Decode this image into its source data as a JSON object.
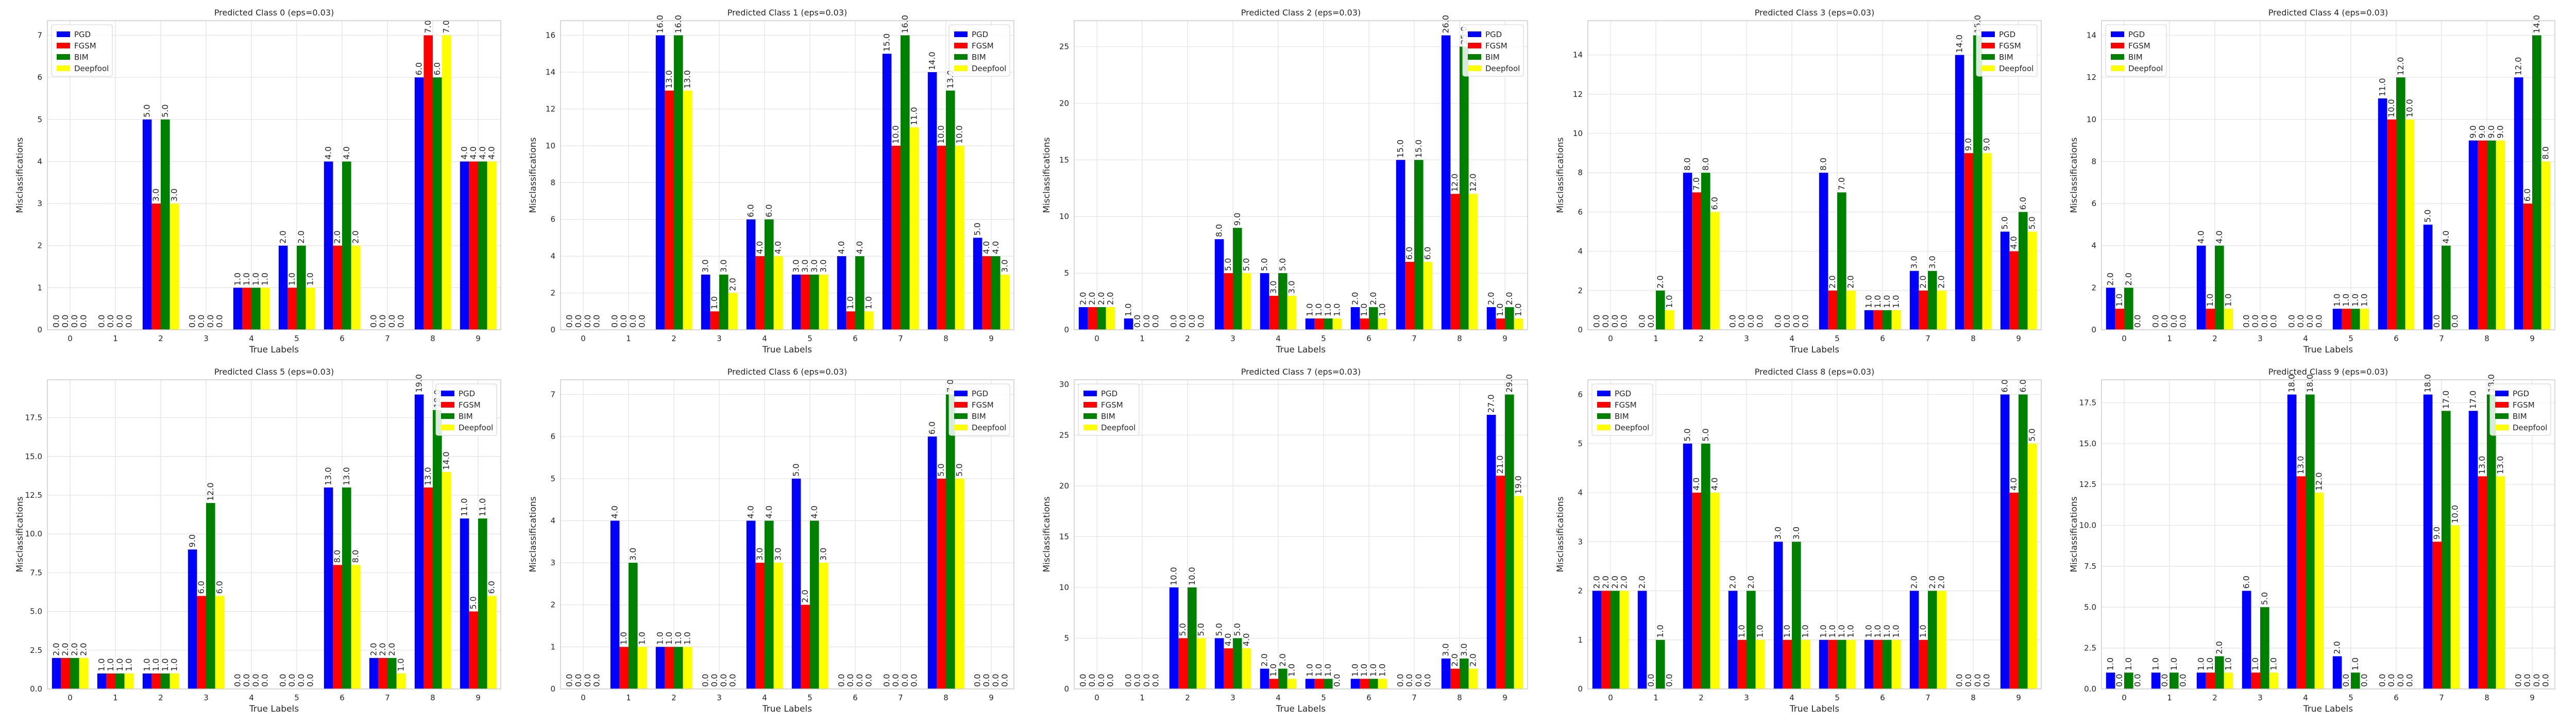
{
  "figure": {
    "series_colors": {
      "PGD": "#0000ff",
      "FGSM": "#ff0000",
      "BIM": "#008000",
      "Deepfool": "#ffff00"
    },
    "grid": true,
    "background": "#ffffff"
  },
  "chart_data": [
    {
      "type": "bar",
      "title": "Predicted Class 0 (eps=0.03)",
      "xlabel": "True Labels",
      "ylabel": "Misclassifications",
      "categories": [
        "0",
        "1",
        "2",
        "3",
        "4",
        "5",
        "6",
        "7",
        "8",
        "9"
      ],
      "ylim": [
        0,
        7.35
      ],
      "yticks": [
        0,
        1,
        2,
        3,
        4,
        5,
        6,
        7
      ],
      "ytick_labels": [
        "0",
        "1",
        "2",
        "3",
        "4",
        "5",
        "6",
        "7"
      ],
      "legend": "top-left",
      "series": [
        {
          "name": "PGD",
          "values": [
            0,
            0,
            5,
            0,
            1,
            2,
            4,
            0,
            6,
            4
          ]
        },
        {
          "name": "FGSM",
          "values": [
            0,
            0,
            3,
            0,
            1,
            1,
            2,
            0,
            7,
            4
          ]
        },
        {
          "name": "BIM",
          "values": [
            0,
            0,
            5,
            0,
            1,
            2,
            4,
            0,
            6,
            4
          ]
        },
        {
          "name": "Deepfool",
          "values": [
            0,
            0,
            3,
            0,
            1,
            1,
            2,
            0,
            7,
            4
          ]
        }
      ]
    },
    {
      "type": "bar",
      "title": "Predicted Class 1 (eps=0.03)",
      "xlabel": "True Labels",
      "ylabel": "Misclassifications",
      "categories": [
        "0",
        "1",
        "2",
        "3",
        "4",
        "5",
        "6",
        "7",
        "8",
        "9"
      ],
      "ylim": [
        0,
        16.8
      ],
      "yticks": [
        0,
        2,
        4,
        6,
        8,
        10,
        12,
        14,
        16
      ],
      "ytick_labels": [
        "0",
        "2",
        "4",
        "6",
        "8",
        "10",
        "12",
        "14",
        "16"
      ],
      "legend": "top-right",
      "series": [
        {
          "name": "PGD",
          "values": [
            0,
            0,
            16,
            3,
            6,
            3,
            4,
            15,
            14,
            5
          ]
        },
        {
          "name": "FGSM",
          "values": [
            0,
            0,
            13,
            1,
            4,
            3,
            1,
            10,
            10,
            4
          ]
        },
        {
          "name": "BIM",
          "values": [
            0,
            0,
            16,
            3,
            6,
            3,
            4,
            16,
            13,
            4
          ]
        },
        {
          "name": "Deepfool",
          "values": [
            0,
            0,
            13,
            2,
            4,
            3,
            1,
            11,
            10,
            3
          ]
        }
      ]
    },
    {
      "type": "bar",
      "title": "Predicted Class 2 (eps=0.03)",
      "xlabel": "True Labels",
      "ylabel": "Misclassifications",
      "categories": [
        "0",
        "1",
        "2",
        "3",
        "4",
        "5",
        "6",
        "7",
        "8",
        "9"
      ],
      "ylim": [
        0,
        27.3
      ],
      "yticks": [
        0,
        5,
        10,
        15,
        20,
        25
      ],
      "ytick_labels": [
        "0",
        "5",
        "10",
        "15",
        "20",
        "25"
      ],
      "legend": "top-right",
      "series": [
        {
          "name": "PGD",
          "values": [
            2,
            1,
            0,
            8,
            5,
            1,
            2,
            15,
            26,
            2
          ]
        },
        {
          "name": "FGSM",
          "values": [
            2,
            0,
            0,
            5,
            3,
            1,
            1,
            6,
            12,
            1
          ]
        },
        {
          "name": "BIM",
          "values": [
            2,
            0,
            0,
            9,
            5,
            1,
            2,
            15,
            25,
            2
          ]
        },
        {
          "name": "Deepfool",
          "values": [
            2,
            0,
            0,
            5,
            3,
            1,
            1,
            6,
            12,
            1
          ]
        }
      ]
    },
    {
      "type": "bar",
      "title": "Predicted Class 3 (eps=0.03)",
      "xlabel": "True Labels",
      "ylabel": "Misclassifications",
      "categories": [
        "0",
        "1",
        "2",
        "3",
        "4",
        "5",
        "6",
        "7",
        "8",
        "9"
      ],
      "ylim": [
        0,
        15.75
      ],
      "yticks": [
        0,
        2,
        4,
        6,
        8,
        10,
        12,
        14
      ],
      "ytick_labels": [
        "0",
        "2",
        "4",
        "6",
        "8",
        "10",
        "12",
        "14"
      ],
      "legend": "top-right",
      "series": [
        {
          "name": "PGD",
          "values": [
            0,
            0,
            8,
            0,
            0,
            8,
            1,
            3,
            14,
            5
          ]
        },
        {
          "name": "FGSM",
          "values": [
            0,
            0,
            7,
            0,
            0,
            2,
            1,
            2,
            9,
            4
          ]
        },
        {
          "name": "BIM",
          "values": [
            0,
            2,
            8,
            0,
            0,
            7,
            1,
            3,
            15,
            6
          ]
        },
        {
          "name": "Deepfool",
          "values": [
            0,
            1,
            6,
            0,
            0,
            2,
            1,
            2,
            9,
            5
          ]
        }
      ]
    },
    {
      "type": "bar",
      "title": "Predicted Class 4 (eps=0.03)",
      "xlabel": "True Labels",
      "ylabel": "Misclassifications",
      "categories": [
        "0",
        "1",
        "2",
        "3",
        "4",
        "5",
        "6",
        "7",
        "8",
        "9"
      ],
      "ylim": [
        0,
        14.7
      ],
      "yticks": [
        0,
        2,
        4,
        6,
        8,
        10,
        12,
        14
      ],
      "ytick_labels": [
        "0",
        "2",
        "4",
        "6",
        "8",
        "10",
        "12",
        "14"
      ],
      "legend": "top-left",
      "series": [
        {
          "name": "PGD",
          "values": [
            2,
            0,
            4,
            0,
            0,
            1,
            11,
            5,
            9,
            12
          ]
        },
        {
          "name": "FGSM",
          "values": [
            1,
            0,
            1,
            0,
            0,
            1,
            10,
            0,
            9,
            6
          ]
        },
        {
          "name": "BIM",
          "values": [
            2,
            0,
            4,
            0,
            0,
            1,
            12,
            4,
            9,
            14
          ]
        },
        {
          "name": "Deepfool",
          "values": [
            0,
            0,
            1,
            0,
            0,
            1,
            10,
            0,
            9,
            8
          ]
        }
      ]
    },
    {
      "type": "bar",
      "title": "Predicted Class 5 (eps=0.03)",
      "xlabel": "True Labels",
      "ylabel": "Misclassifications",
      "categories": [
        "0",
        "1",
        "2",
        "3",
        "4",
        "5",
        "6",
        "7",
        "8",
        "9"
      ],
      "ylim": [
        0,
        19.95
      ],
      "yticks": [
        0,
        2.5,
        5,
        7.5,
        10,
        12.5,
        15,
        17.5
      ],
      "ytick_labels": [
        "0.0",
        "2.5",
        "5.0",
        "7.5",
        "10.0",
        "12.5",
        "15.0",
        "17.5"
      ],
      "legend": "top-right",
      "series": [
        {
          "name": "PGD",
          "values": [
            2,
            1,
            1,
            9,
            0,
            0,
            13,
            2,
            19,
            11
          ]
        },
        {
          "name": "FGSM",
          "values": [
            2,
            1,
            1,
            6,
            0,
            0,
            8,
            2,
            13,
            5
          ]
        },
        {
          "name": "BIM",
          "values": [
            2,
            1,
            1,
            12,
            0,
            0,
            13,
            2,
            18,
            11
          ]
        },
        {
          "name": "Deepfool",
          "values": [
            2,
            1,
            1,
            6,
            0,
            0,
            8,
            1,
            14,
            6
          ]
        }
      ]
    },
    {
      "type": "bar",
      "title": "Predicted Class 6 (eps=0.03)",
      "xlabel": "True Labels",
      "ylabel": "Misclassifications",
      "categories": [
        "0",
        "1",
        "2",
        "3",
        "4",
        "5",
        "6",
        "7",
        "8",
        "9"
      ],
      "ylim": [
        0,
        7.35
      ],
      "yticks": [
        0,
        1,
        2,
        3,
        4,
        5,
        6,
        7
      ],
      "ytick_labels": [
        "0",
        "1",
        "2",
        "3",
        "4",
        "5",
        "6",
        "7"
      ],
      "legend": "top-right",
      "series": [
        {
          "name": "PGD",
          "values": [
            0,
            4,
            1,
            0,
            4,
            5,
            0,
            0,
            6,
            0
          ]
        },
        {
          "name": "FGSM",
          "values": [
            0,
            1,
            1,
            0,
            3,
            2,
            0,
            0,
            5,
            0
          ]
        },
        {
          "name": "BIM",
          "values": [
            0,
            3,
            1,
            0,
            4,
            4,
            0,
            0,
            7,
            0
          ]
        },
        {
          "name": "Deepfool",
          "values": [
            0,
            1,
            1,
            0,
            3,
            3,
            0,
            0,
            5,
            0
          ]
        }
      ]
    },
    {
      "type": "bar",
      "title": "Predicted Class 7 (eps=0.03)",
      "xlabel": "True Labels",
      "ylabel": "Misclassifications",
      "categories": [
        "0",
        "1",
        "2",
        "3",
        "4",
        "5",
        "6",
        "7",
        "8",
        "9"
      ],
      "ylim": [
        0,
        30.45
      ],
      "yticks": [
        0,
        5,
        10,
        15,
        20,
        25,
        30
      ],
      "ytick_labels": [
        "0",
        "5",
        "10",
        "15",
        "20",
        "25",
        "30"
      ],
      "legend": "top-left",
      "series": [
        {
          "name": "PGD",
          "values": [
            0,
            0,
            10,
            5,
            2,
            1,
            1,
            0,
            3,
            27
          ]
        },
        {
          "name": "FGSM",
          "values": [
            0,
            0,
            5,
            4,
            1,
            1,
            1,
            0,
            2,
            21
          ]
        },
        {
          "name": "BIM",
          "values": [
            0,
            0,
            10,
            5,
            2,
            1,
            1,
            0,
            3,
            29
          ]
        },
        {
          "name": "Deepfool",
          "values": [
            0,
            0,
            5,
            4,
            1,
            0,
            1,
            0,
            2,
            19
          ]
        }
      ]
    },
    {
      "type": "bar",
      "title": "Predicted Class 8 (eps=0.03)",
      "xlabel": "True Labels",
      "ylabel": "Misclassifications",
      "categories": [
        "0",
        "1",
        "2",
        "3",
        "4",
        "5",
        "6",
        "7",
        "8",
        "9"
      ],
      "ylim": [
        0,
        6.3
      ],
      "yticks": [
        0,
        1,
        2,
        3,
        4,
        5,
        6
      ],
      "ytick_labels": [
        "0",
        "1",
        "2",
        "3",
        "4",
        "5",
        "6"
      ],
      "legend": "top-left",
      "series": [
        {
          "name": "PGD",
          "values": [
            2,
            2,
            5,
            2,
            3,
            1,
            1,
            2,
            0,
            6
          ]
        },
        {
          "name": "FGSM",
          "values": [
            2,
            0,
            4,
            1,
            1,
            1,
            1,
            1,
            0,
            4
          ]
        },
        {
          "name": "BIM",
          "values": [
            2,
            1,
            5,
            2,
            3,
            1,
            1,
            2,
            0,
            6
          ]
        },
        {
          "name": "Deepfool",
          "values": [
            2,
            0,
            4,
            1,
            1,
            1,
            1,
            2,
            0,
            5
          ]
        }
      ]
    },
    {
      "type": "bar",
      "title": "Predicted Class 9 (eps=0.03)",
      "xlabel": "True Labels",
      "ylabel": "Misclassifications",
      "categories": [
        "0",
        "1",
        "2",
        "3",
        "4",
        "5",
        "6",
        "7",
        "8",
        "9"
      ],
      "ylim": [
        0,
        18.9
      ],
      "yticks": [
        0,
        2.5,
        5,
        7.5,
        10,
        12.5,
        15,
        17.5
      ],
      "ytick_labels": [
        "0.0",
        "2.5",
        "5.0",
        "7.5",
        "10.0",
        "12.5",
        "15.0",
        "17.5"
      ],
      "legend": "top-right",
      "series": [
        {
          "name": "PGD",
          "values": [
            1,
            1,
            1,
            6,
            18,
            2,
            0,
            18,
            17,
            0
          ]
        },
        {
          "name": "FGSM",
          "values": [
            0,
            0,
            1,
            1,
            13,
            0,
            0,
            9,
            13,
            0
          ]
        },
        {
          "name": "BIM",
          "values": [
            1,
            1,
            2,
            5,
            18,
            1,
            0,
            17,
            18,
            0
          ]
        },
        {
          "name": "Deepfool",
          "values": [
            0,
            0,
            1,
            1,
            12,
            0,
            0,
            10,
            13,
            0
          ]
        }
      ]
    }
  ]
}
